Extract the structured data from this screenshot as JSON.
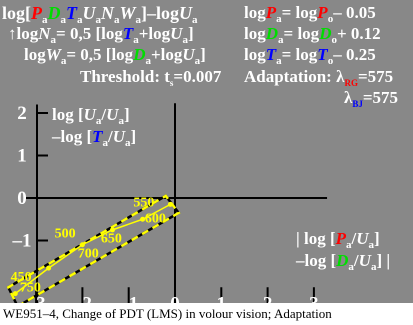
{
  "colors": {
    "background": "#888888",
    "text": "#ffffff",
    "axis": "#000000",
    "data_line": "#ffff00",
    "red": "#ff0000",
    "green": "#00dd00",
    "blue": "#0000ff",
    "orange": "#ff8800"
  },
  "header": {
    "line1_left": {
      "p1": "log[",
      "P": "P",
      "a1": "a",
      "D": "D",
      "a2": "a",
      "T": "T",
      "a3": "a",
      "U": "U",
      "a4": "a",
      "N": "N",
      "a5": "a",
      "W": "W",
      "a6": "a",
      "p2": "]–log",
      "U2": "U",
      "a7": "a"
    },
    "line2_left": {
      "arrow": "↑",
      "p1": "log",
      "N": "N",
      "a1": "a",
      "p2": "= 0,5 [log",
      "T": "T",
      "a2": "a",
      "p3": "+log",
      "U": "U",
      "a3": "a",
      "p4": "]"
    },
    "line3_left": {
      "p1": "log",
      "W": "W",
      "a1": "a",
      "p2": "= 0,5 [log",
      "D": "D",
      "a2": "a",
      "p3": "+log",
      "U": "U",
      "a3": "a",
      "p4": "]"
    },
    "threshold": {
      "p1": "Threshold: t",
      "s": "s",
      "p2": "=0.007"
    },
    "line1_right": {
      "p1": "log",
      "P": "P",
      "a1": "a",
      "p2": "= log",
      "P2": "P",
      "o": "o",
      "p3": "– 0.05"
    },
    "line2_right": {
      "p1": "log",
      "D": "D",
      "a1": "a",
      "p2": "= log",
      "D2": "D",
      "o": "o",
      "p3": "+ 0.12"
    },
    "line3_right": {
      "p1": "log",
      "T": "T",
      "a1": "a",
      "p2": "= log",
      "T2": "T",
      "o": "o",
      "p3": "– 0.25"
    },
    "adaptation": {
      "p1": "Adaptation: λ",
      "sub": "RG",
      "p2": "=575"
    },
    "adaptation2": {
      "p1": "λ",
      "sub": "BJ",
      "p2": "=575"
    }
  },
  "left_label": {
    "l1a": "log [",
    "U": "U",
    "a1": "a",
    "slash": "/",
    "U2": "U",
    "a2": "a",
    "close": "]",
    "l2a": "–log [",
    "T": "T",
    "a3": "a",
    "slash2": "/",
    "U3": "U",
    "a4": "a",
    "close2": "]"
  },
  "right_label": {
    "l1a": "| log [",
    "P": "P",
    "a1": "a",
    "slash": "/",
    "U": "U",
    "a2": "a",
    "close": "]",
    "l2a": "–log [",
    "D": "D",
    "a3": "a",
    "slash2": "/",
    "U2": "U",
    "a4": "a",
    "close2": "] |"
  },
  "footer": "WE951–4, Change of PDT (LMS) in volour vision; Adaptation",
  "chart_data": {
    "type": "line",
    "xlim": [
      -3.5,
      3.5
    ],
    "ylim": [
      -2.6,
      2.3
    ],
    "x_ticks": [
      -3,
      -2,
      -1,
      0,
      1,
      2,
      3
    ],
    "x_tick_labels": [
      "–3",
      "–2",
      "–1",
      "0",
      "1",
      "2",
      "3"
    ],
    "y_ticks": [
      -1,
      0,
      1,
      2
    ],
    "y_tick_labels": [
      "–1",
      "0",
      "1",
      "2"
    ],
    "grid": false,
    "series": [
      {
        "points": [
          {
            "x": -3.45,
            "y": -2.25
          },
          {
            "x": -2.73,
            "y": -1.65
          },
          {
            "x": -2.0,
            "y": -1.1
          },
          {
            "x": -1.35,
            "y": -0.75
          },
          {
            "x": -0.7,
            "y": -0.5
          },
          {
            "x": -0.1,
            "y": -0.15
          }
        ]
      }
    ],
    "labels": [
      {
        "text": "550",
        "x": -0.9,
        "y": -0.2
      },
      {
        "text": "600",
        "x": -0.65,
        "y": -0.58
      },
      {
        "text": "500",
        "x": -2.6,
        "y": -0.93
      },
      {
        "text": "650",
        "x": -1.6,
        "y": -1.05
      },
      {
        "text": "700",
        "x": -2.1,
        "y": -1.4
      },
      {
        "text": "450",
        "x": -3.55,
        "y": -1.95
      },
      {
        "text": "750",
        "x": -3.35,
        "y": -2.2
      }
    ],
    "enclosure": [
      {
        "x": -3.4,
        "y": -2.55
      },
      {
        "x": 0.08,
        "y": -0.35
      },
      {
        "x": -0.2,
        "y": 0.05
      },
      {
        "x": -3.6,
        "y": -2.1
      }
    ]
  }
}
